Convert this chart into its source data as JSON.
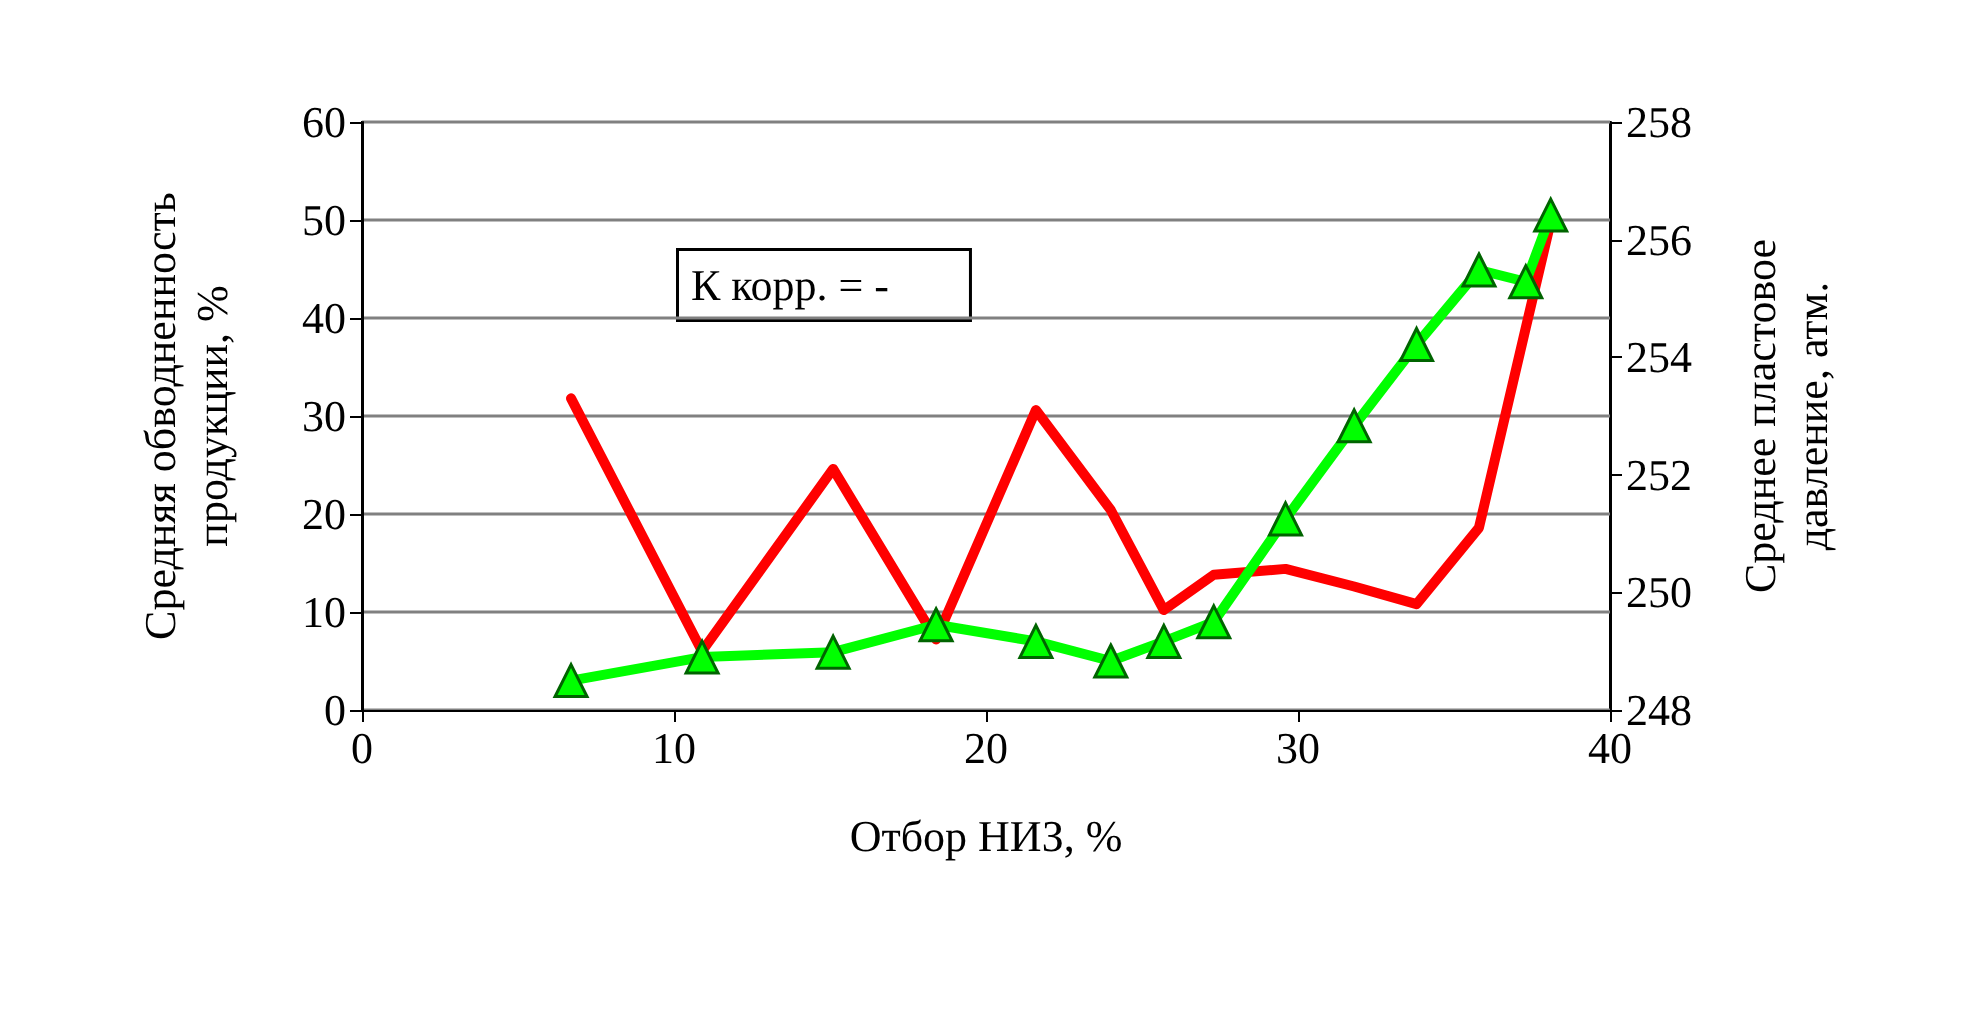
{
  "chart_data": {
    "type": "line",
    "xlabel": "Отбор НИЗ, %",
    "ylabel": "Средняя обводненность продукции, %",
    "y2label": "Среднее пластовое давление, атм.",
    "annotations": [
      "К корр. = -"
    ],
    "xlim": [
      0,
      40
    ],
    "xticks": [
      0,
      10,
      20,
      30,
      40
    ],
    "ylim": [
      0,
      60
    ],
    "yticks": [
      0,
      10,
      20,
      30,
      40,
      50,
      60
    ],
    "y2lim": [
      248,
      258
    ],
    "y2ticks": [
      248,
      250,
      252,
      254,
      256,
      258
    ],
    "grid": "y",
    "series": [
      {
        "color": "#00ff00",
        "marker": "triangle",
        "x": [
          6.7,
          10.9,
          15.1,
          18.4,
          21.6,
          24,
          25.7,
          27.3,
          29.6,
          31.8,
          33.8,
          35.8,
          37.3,
          38.1
        ],
        "values": [
          3,
          5.4,
          5.9,
          8.7,
          7,
          5,
          7,
          9,
          19.5,
          29,
          37.3,
          44.9,
          43.7,
          50.5
        ]
      },
      {
        "color": "#ff0000",
        "marker": "none",
        "axis": "y2",
        "x": [
          6.7,
          10.9,
          15.1,
          18.4,
          21.6,
          24,
          25.7,
          27.3,
          29.6,
          31.8,
          33.8,
          35.8,
          37.3,
          38.1
        ],
        "values": [
          253.3,
          249.0,
          252.1,
          249.2,
          253.1,
          251.4,
          249.7,
          250.3,
          250.4,
          250.1,
          249.8,
          251.1,
          254.5,
          256.3
        ]
      }
    ]
  }
}
